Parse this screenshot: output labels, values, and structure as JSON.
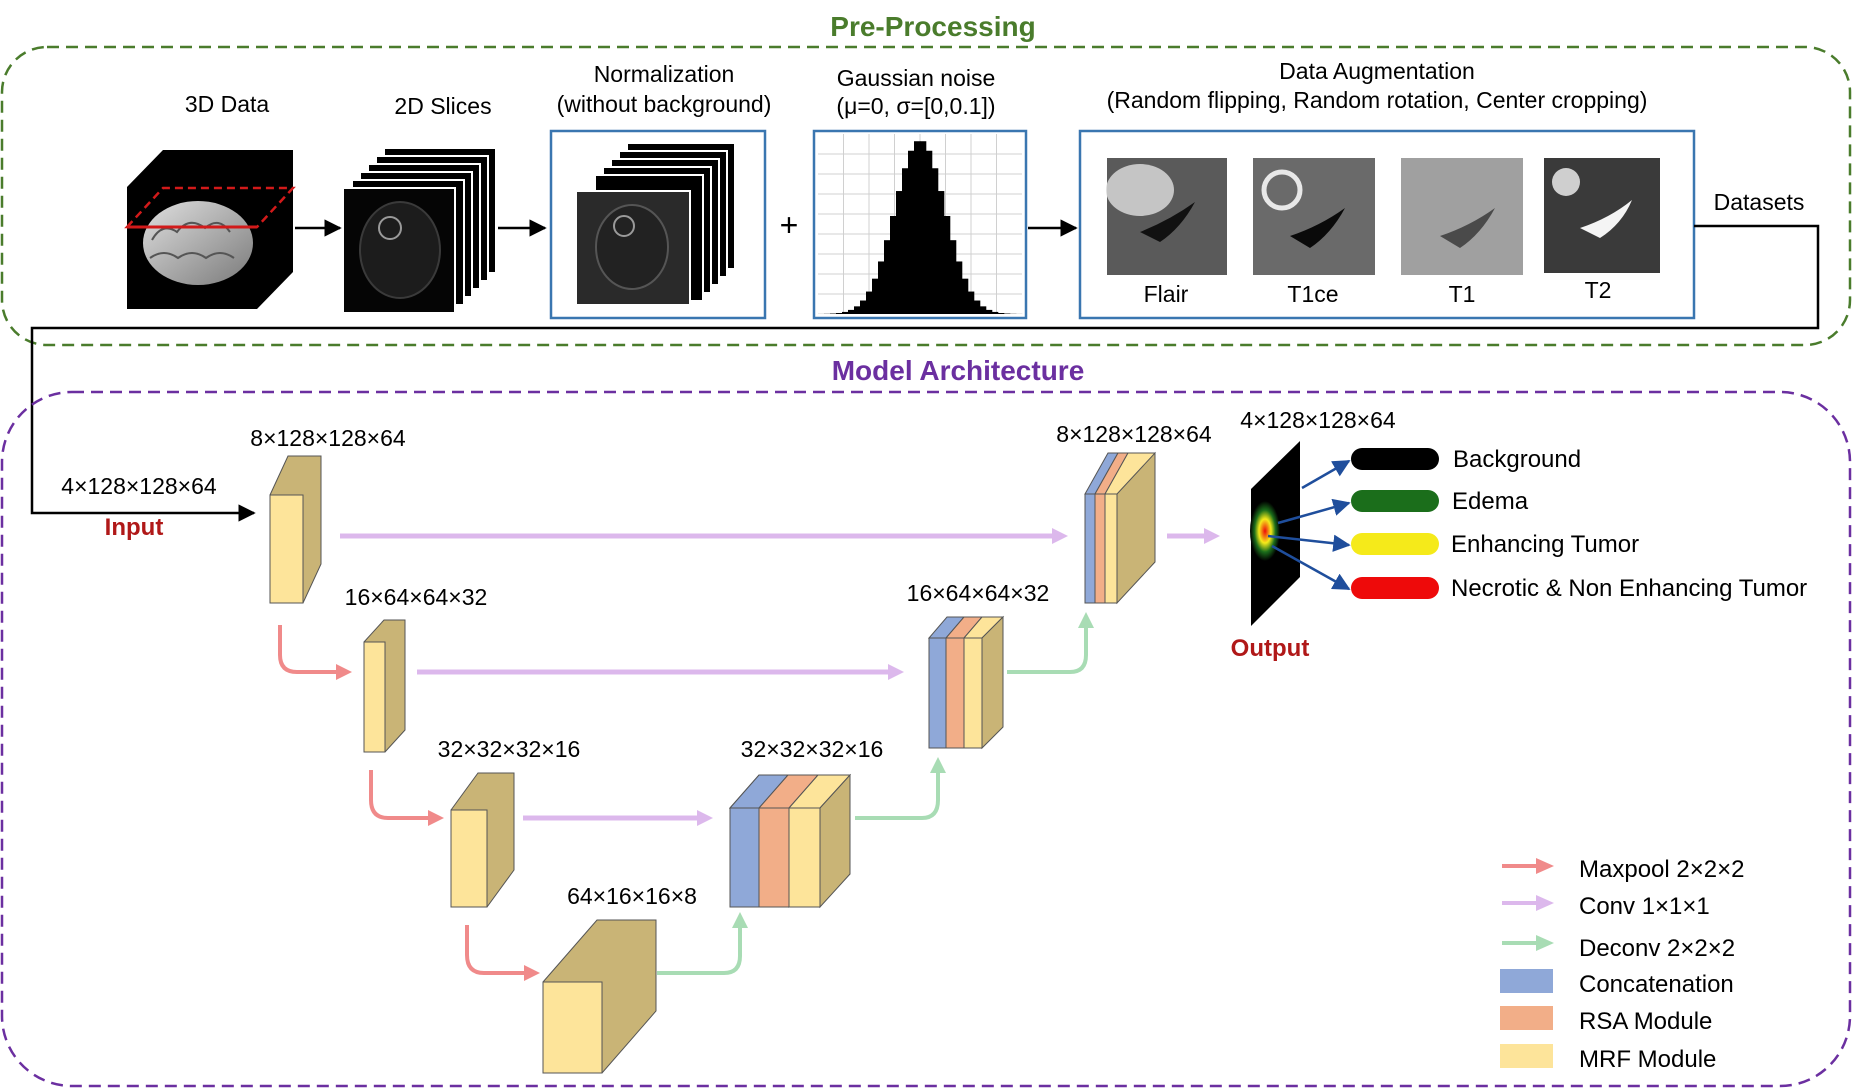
{
  "sections": {
    "preprocessing": {
      "title": "Pre-Processing",
      "color": "#4a7c2c"
    },
    "model": {
      "title": "Model Architecture",
      "color": "#6b2fa0"
    }
  },
  "preprocessing": {
    "data3d_label": "3D Data",
    "slices_label": "2D Slices",
    "norm_label_1": "Normalization",
    "norm_label_2": "(without  background)",
    "plus": "+",
    "noise_label_1": "Gaussian noise",
    "noise_label_2": "(μ=0, σ=[0,0.1])",
    "aug_label_1": "Data Augmentation",
    "aug_label_2": "(Random flipping, Random rotation, Center cropping)",
    "modalities": [
      "Flair",
      "T1ce",
      "T1",
      "T2"
    ],
    "datasets_label": "Datasets"
  },
  "model": {
    "input_label": "Input",
    "input_dims": "4×128×128×64",
    "output_label": "Output",
    "output_dims": "4×128×128×64",
    "enc1_dims": "8×128×128×64",
    "enc2_dims": "16×64×64×32",
    "enc3_dims": "32×32×32×16",
    "bottom_dims": "64×16×16×8",
    "dec3_dims": "32×32×32×16",
    "dec2_dims": "16×64×64×32",
    "dec1_dims": "8×128×128×64",
    "classes": [
      {
        "label": "Background",
        "color": "#000000"
      },
      {
        "label": "Edema",
        "color": "#1b6e1b"
      },
      {
        "label": "Enhancing Tumor",
        "color": "#f5ea1a"
      },
      {
        "label": "Necrotic & Non Enhancing  Tumor",
        "color": "#ee0a0a"
      }
    ]
  },
  "legend": {
    "maxpool": "Maxpool 2×2×2",
    "conv": "Conv 1×1×1",
    "deconv": "Deconv 2×2×2",
    "concat": "Concatenation",
    "rsa": "RSA Module",
    "mrf": "MRF Module"
  },
  "colors": {
    "maxpool": "#f08a8a",
    "conv": "#dcb8ec",
    "deconv": "#a8dcb4",
    "concat": "#8fa8d8",
    "rsa": "#f2ae88",
    "mrf": "#fde49a",
    "block_side": "#c9b476",
    "frame_blue": "#3a76b0",
    "title_red": "#b01818"
  }
}
